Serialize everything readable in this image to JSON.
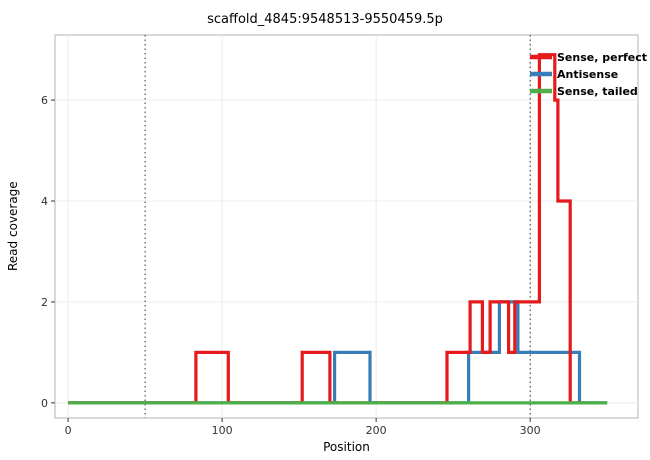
{
  "chart_data": {
    "type": "line",
    "step": true,
    "title": "scaffold_4845:9548513-9550459.5p",
    "xlabel": "Position",
    "ylabel": "Read coverage",
    "xlim": [
      -8.5,
      370
    ],
    "ylim": [
      -0.3,
      7.29
    ],
    "xticks": [
      0,
      100,
      200,
      300
    ],
    "yticks": [
      0,
      2,
      4,
      6
    ],
    "grid": true,
    "grid_color": "#ececec",
    "panel_border_color": "#b3b3b3",
    "annotation_vlines": [
      {
        "x": 50,
        "style": "dotted",
        "color": "#333333"
      },
      {
        "x": 300,
        "style": "dotted",
        "color": "#333333"
      }
    ],
    "series": [
      {
        "name": "Sense, perfect",
        "color": "#e41a1c",
        "points": [
          [
            0,
            0
          ],
          [
            83,
            0
          ],
          [
            83,
            1
          ],
          [
            104,
            1
          ],
          [
            104,
            0
          ],
          [
            152,
            0
          ],
          [
            152,
            1
          ],
          [
            170,
            1
          ],
          [
            170,
            0
          ],
          [
            246,
            0
          ],
          [
            246,
            1
          ],
          [
            261,
            1
          ],
          [
            261,
            2
          ],
          [
            269,
            2
          ],
          [
            269,
            1
          ],
          [
            274,
            1
          ],
          [
            274,
            2
          ],
          [
            286,
            2
          ],
          [
            286,
            1
          ],
          [
            290,
            1
          ],
          [
            290,
            2
          ],
          [
            306,
            2
          ],
          [
            306,
            6.9
          ],
          [
            316,
            6.9
          ],
          [
            316,
            6
          ],
          [
            318,
            6
          ],
          [
            318,
            4
          ],
          [
            326,
            4
          ],
          [
            326,
            0
          ],
          [
            336,
            0
          ]
        ]
      },
      {
        "name": "Antisense",
        "color": "#377eb8",
        "points": [
          [
            0,
            0
          ],
          [
            173,
            0
          ],
          [
            173,
            1
          ],
          [
            196,
            1
          ],
          [
            196,
            0
          ],
          [
            260,
            0
          ],
          [
            260,
            1
          ],
          [
            280,
            1
          ],
          [
            280,
            2
          ],
          [
            292,
            2
          ],
          [
            292,
            1
          ],
          [
            332,
            1
          ],
          [
            332,
            0
          ],
          [
            350,
            0
          ]
        ]
      },
      {
        "name": "Sense, tailed",
        "color": "#4daf4a",
        "points": [
          [
            0,
            0
          ],
          [
            350,
            0
          ]
        ]
      }
    ],
    "draw_order": [
      1,
      0,
      2
    ],
    "legend": {
      "position": "top-right",
      "items": [
        {
          "label": "Sense, perfect",
          "color": "#e41a1c"
        },
        {
          "label": "Antisense",
          "color": "#377eb8"
        },
        {
          "label": "Sense, tailed",
          "color": "#4daf4a"
        }
      ]
    }
  }
}
